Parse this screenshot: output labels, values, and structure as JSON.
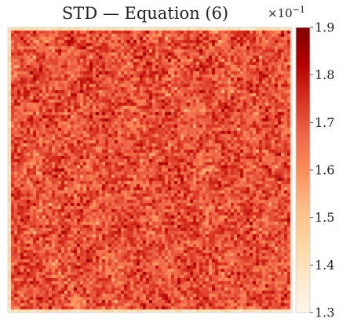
{
  "chart_data": {
    "type": "heatmap",
    "title": "STD — Equation (6)",
    "xlabel": "",
    "ylabel": "",
    "colorbar": {
      "min": 1.3,
      "max": 1.9,
      "ticks": [
        "1.3",
        "1.4",
        "1.5",
        "1.6",
        "1.7",
        "1.8",
        "1.9"
      ],
      "multiplier_base": "×10",
      "multiplier_exponent": "−1",
      "colormap": "OrRd",
      "colors": [
        "#fff7ec",
        "#fee8c8",
        "#fdd49e",
        "#fdbb84",
        "#fc8d59",
        "#ef6548",
        "#d7301f",
        "#b30000",
        "#7f0000"
      ]
    },
    "field": {
      "typical_min": 1.55,
      "typical_max": 1.85,
      "mean": 1.7,
      "edge_value": 1.35
    }
  }
}
